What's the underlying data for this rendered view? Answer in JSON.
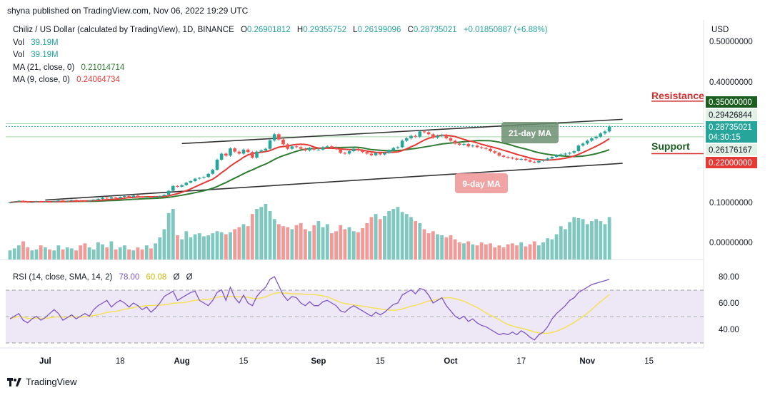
{
  "header": {
    "publisher": "shyna published on TradingView.com, Nov 06, 2022 19:29 UTC"
  },
  "legend": {
    "symbol": "Chiliz / US Dollar (calculated by TradingView), 1D, BINANCE",
    "open_label": "O",
    "open": "0.26901812",
    "high_label": "H",
    "high": "0.29355752",
    "low_label": "L",
    "low": "0.26199096",
    "close_label": "C",
    "close": "0.28735021",
    "change": "+0.01850887 (+6.88%)",
    "vol1_label": "Vol",
    "vol1": "39.19M",
    "vol2_label": "Vol",
    "vol2": "39.19M",
    "ma21_label": "MA (21, close, 0)",
    "ma21": "0.21014714",
    "ma9_label": "MA (9, close, 0)",
    "ma9": "0.24064734"
  },
  "price_axis": {
    "currency": "USD",
    "ticks": [
      "0.50000000",
      "0.40000000",
      "0.10000000",
      "0.00000000"
    ],
    "tags": {
      "resistance_level": "0.35000000",
      "high": "0.29426844",
      "last": "0.28735021",
      "countdown": "04:30:15",
      "low": "0.26176167",
      "support_level": "0.22000000"
    }
  },
  "annotations": {
    "resistance": "Resistance",
    "support": "Support",
    "ma21_callout": "21-day MA",
    "ma9_callout": "9-day MA"
  },
  "rsi": {
    "label": "RSI (14, close, SMA, 14, 2)",
    "value": "78.00",
    "sma": "60.08",
    "extra1": "Ø",
    "extra2": "Ø",
    "ticks": [
      "80.00",
      "60.00",
      "40.00"
    ]
  },
  "x_axis": {
    "ticks": [
      "Jul",
      "18",
      "Aug",
      "15",
      "Sep",
      "15",
      "Oct",
      "17",
      "Nov",
      "15"
    ]
  },
  "footer": {
    "brand": "TradingView"
  },
  "colors": {
    "up": "#26a69a",
    "down": "#ef5350",
    "ma21": "#2e7d32",
    "ma9": "#e53935",
    "rsi": "#7e57c2",
    "rsi_sma": "#f5e15b",
    "rsi_band": "#ede7f6",
    "resistance": "#d32f2f",
    "support_text": "#1b5e20",
    "channel": "#333333"
  },
  "chart_data": {
    "type": "candlestick",
    "x": [
      "2022-06-23",
      "2022-06-24",
      "2022-06-25",
      "2022-06-26",
      "2022-06-27",
      "2022-06-28",
      "2022-06-29",
      "2022-06-30",
      "2022-07-01",
      "2022-07-02",
      "2022-07-03",
      "2022-07-04",
      "2022-07-05",
      "2022-07-06",
      "2022-07-07",
      "2022-07-08",
      "2022-07-09",
      "2022-07-10",
      "2022-07-11",
      "2022-07-12",
      "2022-07-13",
      "2022-07-14",
      "2022-07-15",
      "2022-07-16",
      "2022-07-17",
      "2022-07-18",
      "2022-07-19",
      "2022-07-20",
      "2022-07-21",
      "2022-07-22",
      "2022-07-23",
      "2022-07-24",
      "2022-07-25",
      "2022-07-26",
      "2022-07-27",
      "2022-07-28",
      "2022-07-29",
      "2022-07-30",
      "2022-07-31",
      "2022-08-01",
      "2022-08-02",
      "2022-08-03",
      "2022-08-04",
      "2022-08-05",
      "2022-08-06",
      "2022-08-07",
      "2022-08-08",
      "2022-08-09",
      "2022-08-10",
      "2022-08-11",
      "2022-08-12",
      "2022-08-13",
      "2022-08-14",
      "2022-08-15",
      "2022-08-16",
      "2022-08-17",
      "2022-08-18",
      "2022-08-19",
      "2022-08-20",
      "2022-08-21",
      "2022-08-22",
      "2022-08-23",
      "2022-08-24",
      "2022-08-25",
      "2022-08-26",
      "2022-08-27",
      "2022-08-28",
      "2022-08-29",
      "2022-08-30",
      "2022-08-31",
      "2022-09-01",
      "2022-09-02",
      "2022-09-03",
      "2022-09-04",
      "2022-09-05",
      "2022-09-06",
      "2022-09-07",
      "2022-09-08",
      "2022-09-09",
      "2022-09-10",
      "2022-09-11",
      "2022-09-12",
      "2022-09-13",
      "2022-09-14",
      "2022-09-15",
      "2022-09-16",
      "2022-09-17",
      "2022-09-18",
      "2022-09-19",
      "2022-09-20",
      "2022-09-21",
      "2022-09-22",
      "2022-09-23",
      "2022-09-24",
      "2022-09-25",
      "2022-09-26",
      "2022-09-27",
      "2022-09-28",
      "2022-09-29",
      "2022-09-30",
      "2022-10-01",
      "2022-10-02",
      "2022-10-03",
      "2022-10-04",
      "2022-10-05",
      "2022-10-06",
      "2022-10-07",
      "2022-10-08",
      "2022-10-09",
      "2022-10-10",
      "2022-10-11",
      "2022-10-12",
      "2022-10-13",
      "2022-10-14",
      "2022-10-15",
      "2022-10-16",
      "2022-10-17",
      "2022-10-18",
      "2022-10-19",
      "2022-10-20",
      "2022-10-21",
      "2022-10-22",
      "2022-10-23",
      "2022-10-24",
      "2022-10-25",
      "2022-10-26",
      "2022-10-27",
      "2022-10-28",
      "2022-10-29",
      "2022-10-30",
      "2022-10-31",
      "2022-11-01",
      "2022-11-02",
      "2022-11-03",
      "2022-11-04",
      "2022-11-05",
      "2022-11-06"
    ],
    "close": [
      0.099,
      0.101,
      0.103,
      0.101,
      0.099,
      0.1,
      0.102,
      0.1,
      0.101,
      0.1,
      0.102,
      0.104,
      0.102,
      0.103,
      0.105,
      0.104,
      0.103,
      0.102,
      0.104,
      0.106,
      0.108,
      0.111,
      0.109,
      0.112,
      0.11,
      0.113,
      0.115,
      0.113,
      0.116,
      0.114,
      0.112,
      0.113,
      0.111,
      0.113,
      0.115,
      0.118,
      0.128,
      0.14,
      0.138,
      0.142,
      0.148,
      0.152,
      0.158,
      0.16,
      0.162,
      0.17,
      0.18,
      0.205,
      0.22,
      0.215,
      0.233,
      0.225,
      0.22,
      0.23,
      0.224,
      0.21,
      0.225,
      0.228,
      0.232,
      0.253,
      0.268,
      0.255,
      0.243,
      0.232,
      0.238,
      0.236,
      0.232,
      0.228,
      0.234,
      0.23,
      0.23,
      0.236,
      0.238,
      0.235,
      0.232,
      0.222,
      0.22,
      0.226,
      0.232,
      0.228,
      0.224,
      0.22,
      0.216,
      0.222,
      0.218,
      0.222,
      0.228,
      0.234,
      0.236,
      0.252,
      0.258,
      0.264,
      0.262,
      0.275,
      0.273,
      0.268,
      0.26,
      0.264,
      0.266,
      0.258,
      0.252,
      0.245,
      0.242,
      0.244,
      0.238,
      0.24,
      0.236,
      0.234,
      0.232,
      0.226,
      0.222,
      0.215,
      0.212,
      0.21,
      0.208,
      0.205,
      0.207,
      0.204,
      0.2,
      0.198,
      0.202,
      0.204,
      0.208,
      0.212,
      0.216,
      0.218,
      0.22,
      0.222,
      0.226,
      0.24,
      0.245,
      0.252,
      0.258,
      0.262,
      0.27,
      0.275,
      0.287
    ],
    "volume": [
      9,
      11,
      14,
      18,
      12,
      9,
      10,
      14,
      12,
      10,
      9,
      14,
      10,
      12,
      11,
      9,
      14,
      16,
      12,
      10,
      17,
      15,
      12,
      18,
      10,
      12,
      14,
      10,
      9,
      12,
      10,
      14,
      11,
      16,
      22,
      30,
      46,
      50,
      24,
      20,
      28,
      22,
      25,
      26,
      23,
      24,
      26,
      28,
      27,
      25,
      27,
      30,
      32,
      35,
      33,
      45,
      50,
      52,
      55,
      48,
      40,
      35,
      33,
      32,
      30,
      34,
      36,
      30,
      28,
      34,
      38,
      32,
      35,
      26,
      28,
      34,
      30,
      32,
      28,
      27,
      31,
      36,
      42,
      45,
      40,
      43,
      48,
      50,
      52,
      47,
      45,
      42,
      38,
      36,
      30,
      26,
      28,
      25,
      24,
      22,
      24,
      20,
      17,
      16,
      18,
      15,
      14,
      17,
      15,
      16,
      12,
      14,
      12,
      15,
      16,
      14,
      17,
      13,
      15,
      18,
      14,
      17,
      21,
      20,
      25,
      33,
      30,
      37,
      42,
      41,
      40,
      35,
      38,
      40,
      38,
      35,
      42
    ],
    "ma21_last": 0.21014714,
    "ma9_last": 0.24064734,
    "resistance": 0.35,
    "support": 0.22,
    "channel_upper": [
      [
        "2022-08-01",
        0.245
      ],
      [
        "2022-11-09",
        0.305
      ]
    ],
    "channel_lower": [
      [
        "2022-07-01",
        0.105
      ],
      [
        "2022-11-09",
        0.196
      ]
    ],
    "rsi": [
      48,
      50,
      52,
      47,
      45,
      48,
      50,
      47,
      49,
      52,
      55,
      52,
      47,
      49,
      51,
      48,
      50,
      52,
      50,
      55,
      58,
      60,
      62,
      57,
      60,
      62,
      60,
      57,
      60,
      58,
      55,
      57,
      53,
      56,
      60,
      65,
      67,
      69,
      62,
      64,
      66,
      68,
      69,
      62,
      60,
      58,
      62,
      68,
      70,
      62,
      72,
      64,
      60,
      66,
      60,
      58,
      65,
      69,
      72,
      78,
      80,
      73,
      66,
      62,
      65,
      64,
      60,
      58,
      61,
      58,
      58,
      61,
      62,
      60,
      58,
      54,
      53,
      56,
      58,
      56,
      54,
      52,
      50,
      53,
      51,
      53,
      56,
      59,
      60,
      66,
      68,
      70,
      67,
      71,
      70,
      66,
      60,
      62,
      64,
      58,
      54,
      50,
      48,
      50,
      46,
      48,
      45,
      43,
      42,
      40,
      38,
      36,
      37,
      36,
      38,
      36,
      39,
      37,
      34,
      32,
      36,
      38,
      42,
      48,
      52,
      55,
      58,
      62,
      64,
      68,
      70,
      72,
      74,
      75,
      76,
      77,
      78
    ],
    "rsi_sma_last": 60.08,
    "rsi_bands": [
      70,
      50,
      30
    ],
    "y_ticks": [
      0.5,
      0.4,
      0.1,
      0.0
    ],
    "rsi_ticks": [
      80,
      60,
      40
    ]
  }
}
